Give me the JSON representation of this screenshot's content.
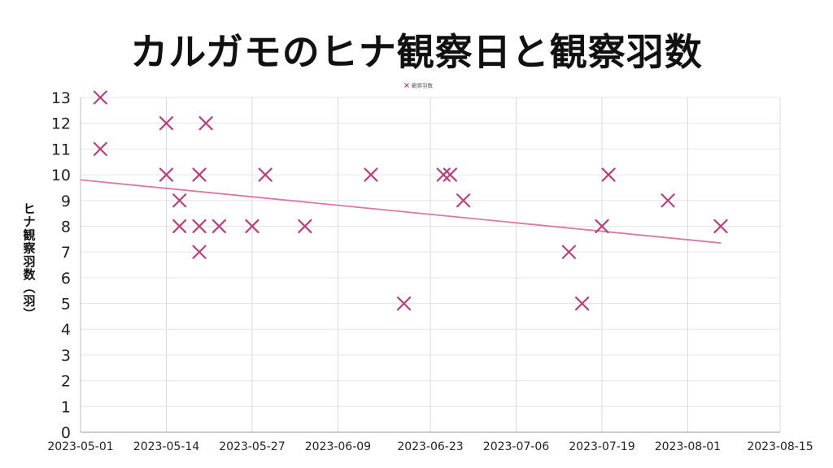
{
  "chart_data": {
    "type": "scatter",
    "title": "カルガモのヒナ観察日と観察羽数",
    "ylabel": "ヒナ観察羽数（羽）",
    "xlabel": "",
    "x_type": "date",
    "xlim": [
      "2023-05-01",
      "2023-08-15"
    ],
    "x_ticks": [
      "2023-05-01",
      "2023-05-14",
      "2023-05-27",
      "2023-06-09",
      "2023-06-23",
      "2023-07-06",
      "2023-07-19",
      "2023-08-01",
      "2023-08-15"
    ],
    "ylim": [
      0,
      13
    ],
    "y_ticks": [
      0,
      1,
      2,
      3,
      4,
      5,
      6,
      7,
      8,
      9,
      10,
      11,
      12,
      13
    ],
    "grid": true,
    "legend_position": "top-center",
    "series": [
      {
        "name": "観察羽数",
        "marker": "x",
        "color": "#b5437f",
        "points": [
          {
            "x": "2023-05-04",
            "y": 13
          },
          {
            "x": "2023-05-04",
            "y": 11
          },
          {
            "x": "2023-05-14",
            "y": 12
          },
          {
            "x": "2023-05-14",
            "y": 10
          },
          {
            "x": "2023-05-16",
            "y": 9
          },
          {
            "x": "2023-05-16",
            "y": 8
          },
          {
            "x": "2023-05-19",
            "y": 10
          },
          {
            "x": "2023-05-19",
            "y": 8
          },
          {
            "x": "2023-05-19",
            "y": 7
          },
          {
            "x": "2023-05-20",
            "y": 12
          },
          {
            "x": "2023-05-22",
            "y": 8
          },
          {
            "x": "2023-05-27",
            "y": 8
          },
          {
            "x": "2023-05-29",
            "y": 10
          },
          {
            "x": "2023-06-04",
            "y": 8
          },
          {
            "x": "2023-06-14",
            "y": 10
          },
          {
            "x": "2023-06-19",
            "y": 5
          },
          {
            "x": "2023-06-25",
            "y": 10
          },
          {
            "x": "2023-06-26",
            "y": 10
          },
          {
            "x": "2023-06-28",
            "y": 9
          },
          {
            "x": "2023-07-14",
            "y": 7
          },
          {
            "x": "2023-07-16",
            "y": 5
          },
          {
            "x": "2023-07-19",
            "y": 8
          },
          {
            "x": "2023-07-20",
            "y": 10
          },
          {
            "x": "2023-07-29",
            "y": 9
          },
          {
            "x": "2023-08-06",
            "y": 8
          }
        ]
      }
    ],
    "trendline": {
      "type": "linear",
      "color": "#d67aa6",
      "start": {
        "x": "2023-05-01",
        "y": 9.8
      },
      "end": {
        "x": "2023-08-06",
        "y": 7.35
      }
    }
  }
}
